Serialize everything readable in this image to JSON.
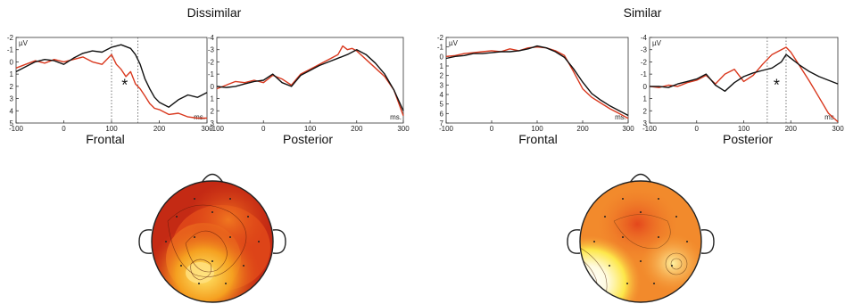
{
  "panels": [
    {
      "title": "Dissimilar"
    },
    {
      "title": "Similar"
    }
  ],
  "colors": {
    "condition_a": "#d9381e",
    "condition_b": "#111111",
    "axis": "#333333"
  },
  "chart_data": [
    {
      "type": "line",
      "panel": "Dissimilar",
      "xlabel": "Frontal",
      "ylabel": "µV",
      "unit": "ms.",
      "xlim": [
        -100,
        300
      ],
      "ylim": [
        -2,
        5
      ],
      "y_inverted": true,
      "xticks": [
        -100,
        0,
        100,
        200,
        300
      ],
      "yticks": [
        -2,
        -1,
        0,
        1,
        2,
        3,
        4,
        5
      ],
      "significance": {
        "marker": "*",
        "window": [
          100,
          155
        ]
      },
      "series": [
        {
          "color": "#d9381e",
          "x": [
            -100,
            -80,
            -60,
            -40,
            -20,
            0,
            20,
            40,
            60,
            80,
            100,
            110,
            120,
            130,
            140,
            150,
            160,
            170,
            180,
            190,
            200,
            220,
            240,
            260,
            280,
            300
          ],
          "y": [
            0.5,
            0.2,
            -0.1,
            0.1,
            -0.2,
            0.0,
            -0.2,
            -0.4,
            0.0,
            0.2,
            -0.6,
            0.2,
            0.6,
            1.2,
            0.8,
            1.8,
            2.2,
            2.8,
            3.4,
            3.8,
            3.9,
            4.3,
            4.2,
            4.5,
            4.6,
            4.6
          ]
        },
        {
          "color": "#111111",
          "x": [
            -100,
            -80,
            -60,
            -40,
            -20,
            0,
            20,
            40,
            60,
            80,
            100,
            120,
            140,
            150,
            160,
            170,
            180,
            190,
            200,
            220,
            240,
            260,
            280,
            300
          ],
          "y": [
            0.8,
            0.4,
            0.0,
            -0.2,
            -0.1,
            0.2,
            -0.3,
            -0.7,
            -0.9,
            -0.8,
            -1.2,
            -1.4,
            -1.1,
            -0.6,
            0.2,
            1.4,
            2.2,
            2.9,
            3.3,
            3.7,
            3.1,
            2.7,
            2.9,
            2.5
          ]
        }
      ]
    },
    {
      "type": "line",
      "panel": "Dissimilar",
      "xlabel": "Posterior",
      "ylabel": "",
      "unit": "ms.",
      "xlim": [
        -100,
        300
      ],
      "ylim": [
        -4,
        3
      ],
      "y_inverted": true,
      "xticks": [
        -100,
        0,
        100,
        200,
        300
      ],
      "yticks": [
        -4,
        -3,
        -2,
        -1,
        0,
        1,
        2,
        3
      ],
      "series": [
        {
          "color": "#d9381e",
          "x": [
            -100,
            -80,
            -60,
            -40,
            -20,
            0,
            20,
            40,
            60,
            80,
            100,
            120,
            140,
            160,
            170,
            180,
            190,
            200,
            220,
            240,
            260,
            280,
            300
          ],
          "y": [
            0.2,
            -0.1,
            -0.4,
            -0.3,
            -0.5,
            -0.3,
            -0.9,
            -0.6,
            -0.1,
            -1.0,
            -1.4,
            -1.8,
            -2.2,
            -2.6,
            -3.3,
            -3.0,
            -3.1,
            -2.9,
            -2.2,
            -1.5,
            -0.8,
            0.3,
            2.4
          ]
        },
        {
          "color": "#111111",
          "x": [
            -100,
            -80,
            -60,
            -40,
            -20,
            0,
            20,
            40,
            60,
            80,
            100,
            120,
            140,
            160,
            180,
            200,
            220,
            240,
            260,
            280,
            300
          ],
          "y": [
            0.0,
            0.1,
            0.0,
            -0.2,
            -0.4,
            -0.5,
            -1.0,
            -0.3,
            0.0,
            -0.9,
            -1.3,
            -1.7,
            -2.0,
            -2.3,
            -2.6,
            -3.0,
            -2.6,
            -1.9,
            -1.0,
            0.3,
            2.0
          ]
        }
      ]
    },
    {
      "type": "line",
      "panel": "Similar",
      "xlabel": "Frontal",
      "ylabel": "µV",
      "unit": "ms.",
      "xlim": [
        -100,
        300
      ],
      "ylim": [
        -2,
        7
      ],
      "y_inverted": true,
      "xticks": [
        -100,
        0,
        100,
        200,
        300
      ],
      "yticks": [
        -2,
        -1,
        0,
        1,
        2,
        3,
        4,
        5,
        6,
        7
      ],
      "series": [
        {
          "color": "#d9381e",
          "x": [
            -100,
            -80,
            -60,
            -40,
            -20,
            0,
            20,
            40,
            60,
            80,
            100,
            120,
            140,
            160,
            180,
            200,
            220,
            240,
            260,
            280,
            300
          ],
          "y": [
            0.0,
            -0.1,
            -0.3,
            -0.4,
            -0.5,
            -0.6,
            -0.5,
            -0.8,
            -0.6,
            -0.9,
            -1.0,
            -0.9,
            -0.6,
            -0.1,
            1.6,
            3.4,
            4.3,
            4.9,
            5.5,
            6.0,
            6.5
          ]
        },
        {
          "color": "#111111",
          "x": [
            -100,
            -80,
            -60,
            -40,
            -20,
            0,
            20,
            40,
            60,
            80,
            100,
            120,
            140,
            160,
            180,
            200,
            220,
            240,
            260,
            280,
            300
          ],
          "y": [
            0.2,
            0.0,
            -0.1,
            -0.3,
            -0.3,
            -0.4,
            -0.5,
            -0.5,
            -0.6,
            -0.8,
            -1.1,
            -0.9,
            -0.5,
            0.1,
            1.3,
            2.7,
            3.9,
            4.6,
            5.2,
            5.7,
            6.2
          ]
        }
      ]
    },
    {
      "type": "line",
      "panel": "Similar",
      "xlabel": "Posterior",
      "ylabel": "µV",
      "unit": "ms.",
      "xlim": [
        -100,
        300
      ],
      "ylim": [
        -4,
        3
      ],
      "y_inverted": true,
      "xticks": [
        -100,
        0,
        100,
        200,
        300
      ],
      "yticks": [
        -4,
        -3,
        -2,
        -1,
        0,
        1,
        2,
        3
      ],
      "significance": {
        "marker": "*",
        "window": [
          150,
          190
        ]
      },
      "series": [
        {
          "color": "#d9381e",
          "x": [
            -100,
            -80,
            -60,
            -40,
            -20,
            0,
            20,
            40,
            60,
            80,
            100,
            120,
            140,
            160,
            180,
            190,
            200,
            220,
            240,
            260,
            280,
            300
          ],
          "y": [
            0.0,
            0.1,
            -0.1,
            0.0,
            -0.3,
            -0.5,
            -0.9,
            -0.2,
            -1.0,
            -1.4,
            -0.4,
            -0.9,
            -1.8,
            -2.6,
            -3.0,
            -3.2,
            -2.8,
            -1.6,
            -0.4,
            0.9,
            2.2,
            2.9
          ]
        },
        {
          "color": "#111111",
          "x": [
            -100,
            -80,
            -60,
            -40,
            -20,
            0,
            20,
            40,
            60,
            80,
            100,
            120,
            140,
            160,
            180,
            190,
            200,
            220,
            240,
            260,
            280,
            300
          ],
          "y": [
            0.0,
            0.0,
            0.1,
            -0.2,
            -0.4,
            -0.6,
            -1.0,
            -0.1,
            0.4,
            -0.3,
            -0.8,
            -1.1,
            -1.3,
            -1.5,
            -2.0,
            -2.6,
            -2.3,
            -1.7,
            -1.2,
            -0.8,
            -0.5,
            -0.2
          ]
        }
      ]
    }
  ]
}
